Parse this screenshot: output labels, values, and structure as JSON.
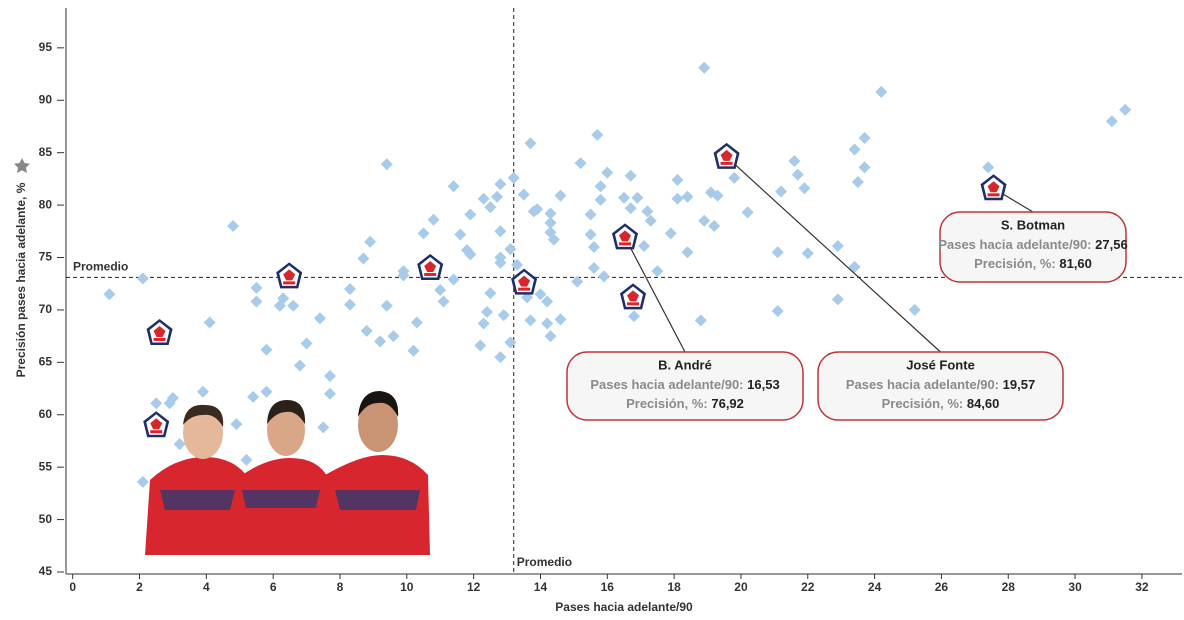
{
  "chart_data": {
    "type": "scatter",
    "x_label": "Pases hacia adelante/90",
    "y_label": "Precisión pases hacia adelante, %",
    "xlim": [
      -0.2,
      33.2
    ],
    "ylim": [
      45,
      98.8
    ],
    "xticks": [
      0,
      2,
      4,
      6,
      8,
      10,
      12,
      14,
      16,
      18,
      20,
      22,
      24,
      26,
      28,
      30,
      32
    ],
    "yticks": [
      45,
      50,
      55,
      60,
      65,
      70,
      75,
      80,
      85,
      90,
      95
    ],
    "vline": {
      "value": 13.2,
      "label": "Promedio"
    },
    "hline": {
      "value": 73.1,
      "label": "Promedio"
    },
    "series": [
      {
        "marker": "diamond",
        "color": "#a7cbe9",
        "x": [
          1.1,
          2.1,
          2.1,
          2.5,
          2.9,
          3.0,
          3.2,
          4.1,
          3.9,
          4.8,
          4.9,
          5.5,
          5.5,
          5.4,
          5.8,
          5.8,
          5.2,
          6.2,
          6.6,
          6.3,
          6.8,
          7.0,
          7.4,
          7.5,
          7.7,
          7.7,
          8.3,
          8.3,
          8.7,
          8.9,
          8.8,
          9.2,
          9.4,
          9.4,
          9.9,
          9.9,
          9.6,
          10.2,
          10.3,
          10.5,
          10.8,
          11.0,
          11.1,
          11.4,
          11.4,
          11.6,
          11.8,
          11.9,
          11.9,
          12.2,
          12.3,
          12.3,
          12.4,
          12.5,
          12.5,
          12.7,
          12.8,
          12.8,
          12.8,
          12.8,
          12.8,
          12.9,
          13.1,
          13.1,
          13.2,
          13.3,
          13.5,
          13.7,
          13.8,
          13.9,
          13.6,
          13.7,
          14.0,
          14.2,
          14.2,
          14.3,
          14.3,
          14.3,
          14.4,
          14.6,
          14.3,
          14.6,
          15.1,
          15.2,
          15.5,
          15.5,
          15.6,
          15.6,
          15.7,
          15.8,
          15.8,
          15.9,
          16.0,
          16.5,
          16.7,
          16.7,
          16.8,
          16.9,
          17.1,
          17.2,
          17.3,
          17.5,
          17.9,
          18.1,
          18.1,
          18.4,
          18.4,
          18.8,
          18.9,
          18.9,
          19.1,
          19.2,
          19.3,
          19.8,
          20.2,
          21.1,
          21.1,
          21.2,
          21.6,
          21.7,
          21.9,
          22.0,
          22.9,
          22.9,
          23.4,
          23.4,
          23.5,
          23.7,
          23.7,
          24.2,
          25.2,
          27.4,
          31.1,
          31.5
        ],
        "values": [
          71.5,
          73.0,
          53.6,
          61.1,
          61.1,
          61.6,
          57.2,
          68.8,
          62.2,
          78.0,
          59.1,
          72.1,
          70.8,
          61.7,
          62.2,
          66.2,
          55.7,
          70.4,
          70.4,
          71.1,
          64.7,
          66.8,
          69.2,
          58.8,
          63.7,
          62.0,
          72.0,
          70.5,
          74.9,
          76.5,
          68.0,
          67.0,
          70.4,
          83.9,
          73.7,
          73.3,
          67.5,
          66.1,
          68.8,
          77.3,
          78.6,
          71.9,
          70.8,
          72.9,
          81.8,
          77.2,
          75.7,
          79.1,
          75.3,
          66.6,
          80.6,
          68.7,
          69.8,
          71.6,
          79.8,
          80.8,
          82.0,
          77.5,
          75.0,
          74.5,
          65.5,
          69.5,
          75.8,
          66.9,
          82.6,
          74.3,
          81.0,
          85.9,
          79.4,
          79.6,
          71.2,
          69.0,
          71.5,
          70.8,
          68.7,
          77.4,
          78.3,
          79.2,
          76.7,
          80.9,
          67.5,
          69.1,
          72.7,
          84.0,
          79.1,
          77.2,
          76.0,
          74.0,
          86.7,
          81.8,
          80.5,
          73.2,
          83.1,
          80.7,
          82.8,
          79.7,
          69.4,
          80.7,
          76.1,
          79.4,
          78.5,
          73.7,
          77.3,
          82.4,
          80.6,
          80.8,
          75.5,
          69.0,
          78.5,
          93.1,
          81.2,
          78.0,
          80.9,
          82.6,
          79.3,
          75.5,
          69.9,
          81.3,
          84.2,
          82.9,
          81.6,
          75.4,
          71.0,
          76.1,
          74.1,
          85.3,
          82.2,
          83.6,
          86.4,
          90.8,
          70.0,
          83.6,
          88.0,
          89.1
        ]
      },
      {
        "marker": "logo",
        "x": [
          6.48,
          10.7,
          13.51,
          16.77,
          2.6,
          2.5
        ],
        "values": [
          73.2,
          74.0,
          72.6,
          71.2,
          67.8,
          59.0
        ]
      }
    ],
    "annotations": [
      {
        "name": "S. Botman",
        "x_text": "Pases hacia adelante/90:",
        "x_value": 27.56,
        "x_value_label": "27,56",
        "y_text": "Precisión, %:",
        "y_value": 81.6,
        "y_value_label": "81,60"
      },
      {
        "name": "B. André",
        "x_text": "Pases hacia adelante/90:",
        "x_value": 16.53,
        "x_value_label": "16,53",
        "y_text": "Precisión, %:",
        "y_value": 76.92,
        "y_value_label": "76,92"
      },
      {
        "name": "José Fonte",
        "x_text": "Pases hacia adelante/90:",
        "x_value": 19.57,
        "x_value_label": "19,57",
        "y_text": "Precisión, %:",
        "y_value": 84.6,
        "y_value_label": "84,60"
      }
    ]
  }
}
